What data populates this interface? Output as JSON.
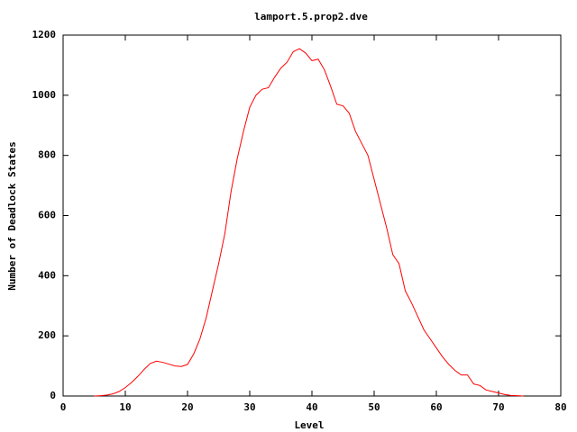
{
  "chart_data": {
    "type": "line",
    "title": "lamport.5.prop2.dve",
    "x_label": "Level",
    "y_label": "Number of Deadlock States",
    "x": [
      5,
      6,
      7,
      8,
      9,
      10,
      11,
      12,
      13,
      14,
      15,
      16,
      17,
      18,
      19,
      20,
      21,
      22,
      23,
      24,
      25,
      26,
      27,
      28,
      29,
      30,
      31,
      32,
      33,
      34,
      35,
      36,
      37,
      38,
      39,
      40,
      41,
      42,
      43,
      44,
      45,
      46,
      47,
      48,
      49,
      50,
      51,
      52,
      53,
      54,
      55,
      56,
      57,
      58,
      59,
      60,
      61,
      62,
      63,
      64,
      65,
      66,
      67,
      68,
      69,
      70,
      71,
      72,
      73,
      74
    ],
    "values": [
      0,
      1,
      3,
      7,
      15,
      28,
      45,
      65,
      88,
      108,
      116,
      112,
      106,
      100,
      98,
      105,
      140,
      190,
      260,
      350,
      440,
      540,
      680,
      790,
      880,
      960,
      1000,
      1020,
      1025,
      1060,
      1090,
      1110,
      1145,
      1155,
      1140,
      1115,
      1120,
      1085,
      1030,
      970,
      965,
      940,
      880,
      840,
      800,
      720,
      640,
      560,
      470,
      440,
      350,
      310,
      265,
      220,
      190,
      160,
      130,
      105,
      85,
      70,
      70,
      40,
      35,
      20,
      15,
      10,
      5,
      2,
      1,
      0
    ],
    "color": "#ff0000",
    "xlim": [
      0,
      80
    ],
    "xticks": [
      0,
      10,
      20,
      30,
      40,
      50,
      60,
      70,
      80
    ],
    "ylim": [
      0,
      1200
    ],
    "yticks": [
      0,
      200,
      400,
      600,
      800,
      1000,
      1200
    ]
  }
}
